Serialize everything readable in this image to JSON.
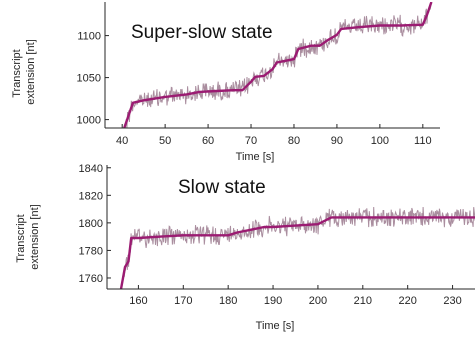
{
  "colors": {
    "line": "#9b1b72",
    "band": "#9b7a8e",
    "axis": "#262626"
  },
  "chart_data": [
    {
      "type": "line",
      "title": "Super-slow state",
      "xlabel": "Time [s]",
      "ylabel": "Transcript\nextension [nt]",
      "xlim": [
        36,
        114
      ],
      "ylim": [
        990,
        1140
      ],
      "xticks": [
        "40",
        "50",
        "60",
        "70",
        "80",
        "90",
        "100",
        "110"
      ],
      "yticks": [
        "1000",
        "1050",
        "1100"
      ],
      "grid": false,
      "series": [
        {
          "x": [
            39.8,
            41.5,
            42.5,
            45,
            50,
            55,
            58,
            62,
            66,
            68,
            70,
            71,
            73,
            75,
            76,
            78,
            80,
            81,
            84,
            86,
            88,
            90,
            91,
            95,
            100,
            105,
            110,
            111,
            112
          ],
          "y": [
            980,
            1005,
            1020,
            1023,
            1027,
            1030,
            1033,
            1034,
            1035,
            1035,
            1045,
            1051,
            1052,
            1060,
            1068,
            1070,
            1072,
            1084,
            1088,
            1088,
            1095,
            1101,
            1108,
            1110,
            1112,
            1112,
            1113,
            1125,
            1140
          ]
        }
      ]
    },
    {
      "type": "line",
      "title": "Slow state",
      "xlabel": "Time [s]",
      "ylabel": "Transcript\nextension [nt]",
      "xlim": [
        153,
        235
      ],
      "ylim": [
        1752,
        1842
      ],
      "xticks": [
        "160",
        "170",
        "180",
        "190",
        "200",
        "210",
        "220",
        "230"
      ],
      "yticks": [
        "1760",
        "1780",
        "1800",
        "1820",
        "1840"
      ],
      "grid": false,
      "series": [
        {
          "x": [
            156,
            157,
            157.8,
            158.4,
            160,
            165,
            170,
            175,
            180,
            182,
            185,
            188,
            190,
            195,
            200,
            203,
            204,
            210,
            220,
            230,
            235
          ],
          "y": [
            1750,
            1768,
            1772,
            1789,
            1789,
            1790,
            1791,
            1791,
            1791,
            1793,
            1795,
            1797,
            1797,
            1798,
            1799,
            1804,
            1804,
            1804,
            1804,
            1804,
            1804
          ]
        }
      ]
    }
  ]
}
